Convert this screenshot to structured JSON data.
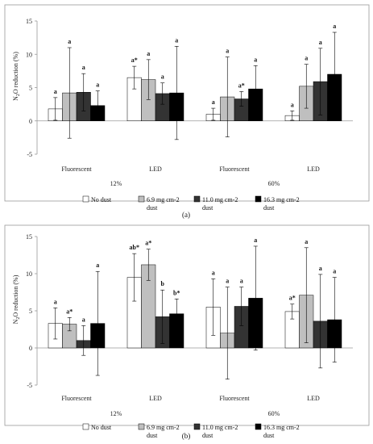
{
  "chart_data": [
    {
      "type": "bar",
      "panel_label": "(a)",
      "ylabel_main": "N",
      "ylabel_sub": "2",
      "ylabel_rest": "O reduction (%)",
      "ylim": [
        -5,
        15
      ],
      "yticks": [
        -5,
        0,
        5,
        10,
        15
      ],
      "categories": [
        "Fluorescent",
        "LED",
        "Fluorescent",
        "LED"
      ],
      "groups": [
        {
          "label": "12%",
          "span": [
            0,
            1
          ]
        },
        {
          "label": "60%",
          "span": [
            2,
            3
          ]
        }
      ],
      "series": [
        {
          "name": "No dust",
          "color": "#ffffff",
          "values": [
            1.8,
            6.5,
            1.0,
            0.8
          ],
          "errors": [
            1.7,
            1.7,
            0.9,
            0.7
          ],
          "labels": [
            "a",
            "a*",
            "a",
            "a"
          ]
        },
        {
          "name": "6.9 mg cm-2 dust",
          "color": "#bfbfbf",
          "values": [
            4.2,
            6.2,
            3.6,
            5.2
          ],
          "errors": [
            6.8,
            3.0,
            6.0,
            3.3
          ],
          "labels": [
            "a",
            "a",
            "a",
            "a"
          ]
        },
        {
          "name": "11.0 mg cm-2 dust",
          "color": "#333333",
          "values": [
            4.3,
            4.1,
            3.3,
            5.9
          ],
          "errors": [
            2.8,
            1.6,
            1.1,
            5.0
          ],
          "labels": [
            "a",
            "a",
            "a*",
            "a"
          ]
        },
        {
          "name": "16.3 mg cm-2 dust",
          "color": "#000000",
          "values": [
            2.3,
            4.2,
            4.8,
            7.0
          ],
          "errors": [
            2.2,
            7.0,
            3.5,
            6.3
          ],
          "labels": [
            "a",
            "a",
            "a",
            "a"
          ]
        }
      ]
    },
    {
      "type": "bar",
      "panel_label": "(b)",
      "ylabel_main": "N",
      "ylabel_sub": "2",
      "ylabel_rest": "O reduction (%)",
      "ylim": [
        -5,
        15
      ],
      "yticks": [
        -5,
        0,
        5,
        10,
        15
      ],
      "categories": [
        "Fluorescent",
        "LED",
        "Fluorescent",
        "LED"
      ],
      "groups": [
        {
          "label": "12%",
          "span": [
            0,
            1
          ]
        },
        {
          "label": "60%",
          "span": [
            2,
            3
          ]
        }
      ],
      "series": [
        {
          "name": "No dust",
          "color": "#ffffff",
          "values": [
            3.3,
            9.5,
            5.5,
            4.9
          ],
          "errors": [
            2.1,
            3.2,
            3.8,
            1.0
          ],
          "labels": [
            "a",
            "ab*",
            "a",
            "a*"
          ]
        },
        {
          "name": "6.9 mg cm-2 dust",
          "color": "#bfbfbf",
          "values": [
            3.2,
            11.2,
            2.0,
            7.1
          ],
          "errors": [
            0.9,
            2.1,
            6.2,
            6.4
          ],
          "labels": [
            "a*",
            "a*",
            "a",
            "a"
          ]
        },
        {
          "name": "11.0 mg cm-2 dust",
          "color": "#333333",
          "values": [
            1.0,
            4.2,
            5.6,
            3.6
          ],
          "errors": [
            2.0,
            3.6,
            2.6,
            6.3
          ],
          "labels": [
            "a",
            "b",
            "a",
            "a"
          ]
        },
        {
          "name": "16.3 mg cm-2 dust",
          "color": "#000000",
          "values": [
            3.3,
            4.6,
            6.7,
            3.8
          ],
          "errors": [
            7.0,
            2.0,
            7.0,
            5.7
          ],
          "labels": [
            "a",
            "b*",
            "a",
            "a"
          ]
        }
      ]
    }
  ],
  "legend": {
    "entries": [
      {
        "line1": "No dust",
        "line2": ""
      },
      {
        "line1": "6.9 mg cm-2",
        "line2": "dust"
      },
      {
        "line1": "11.0 mg cm-2",
        "line2": "dust"
      },
      {
        "line1": "16.3 mg cm-2",
        "line2": "dust"
      }
    ]
  }
}
